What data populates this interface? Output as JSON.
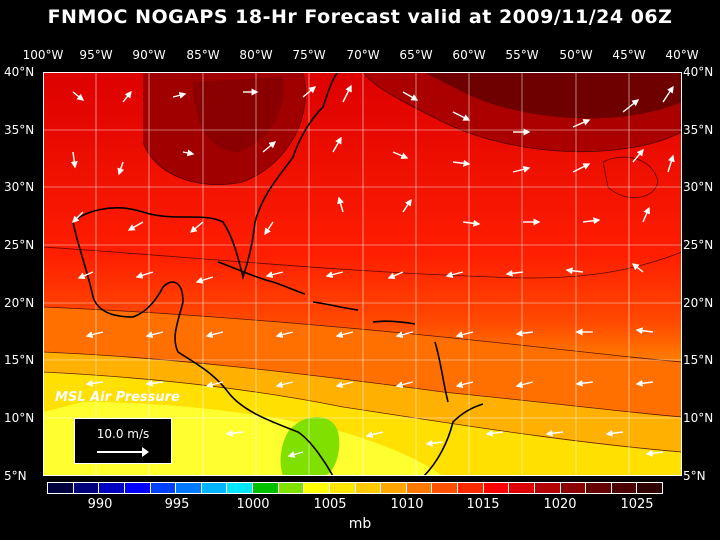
{
  "title": "FNMOC NOGAPS 18-Hr Forecast valid at 2009/11/24 06Z",
  "lon_labels": [
    "100°W",
    "95°W",
    "90°W",
    "85°W",
    "80°W",
    "75°W",
    "70°W",
    "65°W",
    "60°W",
    "55°W",
    "50°W",
    "45°W",
    "40°W"
  ],
  "lat_labels": [
    "40°N",
    "35°N",
    "30°N",
    "25°N",
    "20°N",
    "15°N",
    "10°N",
    "5°N"
  ],
  "field_label": "MSL Air Pressure",
  "reference_vector": "10.0 m/s",
  "colorbar": {
    "ticks": [
      "990",
      "995",
      "1000",
      "1005",
      "1010",
      "1015",
      "1020",
      "1025"
    ],
    "unit": "mb",
    "colors": [
      "#000040",
      "#00007a",
      "#0000c0",
      "#0000ff",
      "#0040ff",
      "#0078ff",
      "#00b4ff",
      "#00e6ff",
      "#00c000",
      "#80e000",
      "#ffff00",
      "#ffe600",
      "#ffc800",
      "#ffa500",
      "#ff7800",
      "#ff5000",
      "#ff2800",
      "#ff0000",
      "#dc0000",
      "#b40000",
      "#8c0000",
      "#640000",
      "#4a0000",
      "#300000"
    ]
  },
  "colors": {
    "background": "#000000",
    "map_border": "#ffffff",
    "wind_vectors": "#ffffff",
    "coastline": "#000000"
  }
}
